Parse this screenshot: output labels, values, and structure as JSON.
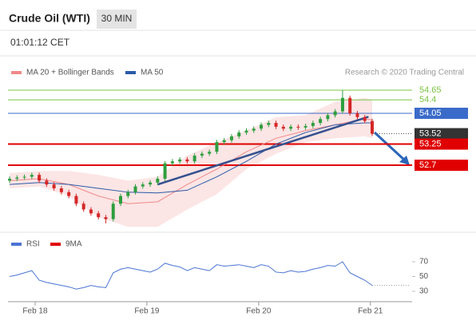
{
  "header": {
    "title": "Crude Oil (WTI)",
    "interval": "30 MIN",
    "time": "01:01:12 CET",
    "credit": "Research © 2020 Trading Central"
  },
  "chart_data": [
    {
      "type": "candlestick",
      "xlim": [
        -0.22,
        54.29
      ],
      "ylim": [
        50.98,
        54.92
      ],
      "xticks": [
        {
          "value": 3.45,
          "label": "Feb 18"
        },
        {
          "value": 18.55,
          "label": "Feb 19"
        },
        {
          "value": 33.66,
          "label": "Feb 20"
        },
        {
          "value": 48.76,
          "label": "Feb 21"
        }
      ],
      "up_color": "#2e9e3e",
      "down_color": "#d62728",
      "open": [
        52.3,
        52.35,
        52.38,
        52.4,
        52.45,
        52.3,
        52.2,
        52.1,
        52.0,
        51.9,
        51.7,
        51.55,
        51.45,
        51.35,
        51.3,
        51.7,
        51.9,
        52.0,
        52.15,
        52.2,
        52.25,
        52.35,
        52.75,
        52.8,
        52.85,
        52.8,
        52.95,
        53.0,
        53.05,
        53.3,
        53.35,
        53.45,
        53.55,
        53.6,
        53.65,
        53.75,
        53.8,
        53.7,
        53.65,
        53.7,
        53.68,
        53.72,
        53.8,
        53.9,
        54.0,
        54.1,
        54.45,
        54.05,
        53.95,
        53.85
      ],
      "high": [
        52.41,
        52.44,
        52.46,
        52.51,
        52.51,
        52.36,
        52.26,
        52.16,
        52.06,
        51.96,
        51.76,
        51.61,
        51.51,
        51.41,
        51.76,
        51.96,
        52.06,
        52.21,
        52.26,
        52.31,
        52.41,
        52.81,
        52.86,
        52.91,
        52.91,
        53.01,
        53.06,
        53.11,
        53.36,
        53.41,
        53.51,
        53.61,
        53.66,
        53.71,
        53.81,
        53.86,
        53.86,
        53.76,
        53.76,
        53.76,
        53.78,
        53.86,
        53.96,
        54.06,
        54.16,
        54.65,
        54.51,
        54.11,
        54.01,
        53.91
      ],
      "low": [
        52.24,
        52.29,
        52.32,
        52.34,
        52.24,
        52.14,
        52.04,
        51.94,
        51.84,
        51.64,
        51.49,
        51.39,
        51.29,
        51.19,
        51.24,
        51.64,
        51.84,
        51.94,
        52.09,
        52.14,
        52.19,
        52.29,
        52.69,
        52.74,
        52.74,
        52.74,
        52.89,
        52.94,
        52.99,
        53.24,
        53.29,
        53.39,
        53.49,
        53.54,
        53.59,
        53.69,
        53.64,
        53.59,
        53.59,
        53.62,
        53.62,
        53.66,
        53.74,
        53.84,
        53.94,
        54.04,
        53.99,
        53.89,
        53.79,
        53.46
      ],
      "close": [
        52.35,
        52.38,
        52.4,
        52.45,
        52.3,
        52.2,
        52.1,
        52.0,
        51.9,
        51.7,
        51.55,
        51.45,
        51.35,
        51.3,
        51.7,
        51.9,
        52.0,
        52.15,
        52.2,
        52.25,
        52.35,
        52.75,
        52.8,
        52.85,
        52.8,
        52.95,
        53.0,
        53.05,
        53.3,
        53.35,
        53.45,
        53.55,
        53.6,
        53.65,
        53.75,
        53.8,
        53.7,
        53.65,
        53.7,
        53.68,
        53.72,
        53.8,
        53.9,
        54.0,
        54.1,
        54.45,
        54.05,
        53.95,
        53.85,
        53.52
      ],
      "ma_x": [
        0,
        4,
        8,
        12,
        16,
        20,
        24,
        28,
        32,
        36,
        40,
        44,
        48,
        49
      ],
      "series": [
        {
          "name": "MA 20 + Bollinger Bands",
          "color": "#f08a8a",
          "values": [
            52.3,
            52.35,
            52.2,
            51.9,
            51.7,
            51.75,
            52.2,
            52.6,
            53.05,
            53.4,
            53.6,
            53.75,
            53.9,
            53.88
          ],
          "upper": [
            52.5,
            52.55,
            52.55,
            52.45,
            52.3,
            52.4,
            52.95,
            53.3,
            53.6,
            53.95,
            54.0,
            54.35,
            54.45,
            54.4
          ],
          "lower": [
            52.1,
            52.15,
            51.9,
            51.35,
            51.1,
            51.1,
            51.55,
            51.95,
            52.6,
            53.0,
            53.3,
            53.4,
            53.45,
            53.4
          ]
        },
        {
          "name": "MA 50",
          "color": "#2b5aa8",
          "values": [
            52.2,
            52.25,
            52.2,
            52.1,
            52.0,
            51.98,
            52.05,
            52.4,
            52.8,
            53.25,
            53.55,
            53.75,
            53.8,
            53.8
          ]
        }
      ],
      "trendline": {
        "x": [
          20,
          48.5
        ],
        "y": [
          52.2,
          53.96
        ],
        "color": "#34508f"
      },
      "levels": [
        {
          "value": 54.65,
          "color": "#7cc444",
          "boxed": false
        },
        {
          "value": 54.4,
          "color": "#7cc444",
          "boxed": false
        },
        {
          "value": 54.05,
          "color": "#3b6bc9",
          "boxed": true
        },
        {
          "value": 53.52,
          "color": "#333333",
          "boxed": true
        },
        {
          "value": 53.25,
          "color": "#e00000",
          "boxed": true
        },
        {
          "value": 52.7,
          "color": "#e00000",
          "boxed": true
        }
      ]
    },
    {
      "type": "line",
      "xlim": [
        -0.22,
        54.29
      ],
      "ylim": [
        19.2,
        80.8
      ],
      "yticks": [
        70,
        50,
        30
      ],
      "series": [
        {
          "name": "RSI",
          "color": "#4a74d4",
          "values": [
            50,
            52,
            55,
            58,
            45,
            42,
            40,
            38,
            36,
            33,
            35,
            38,
            36,
            35,
            55,
            60,
            62,
            60,
            58,
            56,
            60,
            68,
            65,
            63,
            58,
            62,
            60,
            58,
            66,
            64,
            65,
            66,
            64,
            62,
            66,
            64,
            56,
            55,
            58,
            56,
            57,
            60,
            62,
            65,
            64,
            70,
            55,
            50,
            45,
            38
          ]
        },
        {
          "name": "9MA",
          "color": "#e00000",
          "values": []
        }
      ]
    }
  ]
}
